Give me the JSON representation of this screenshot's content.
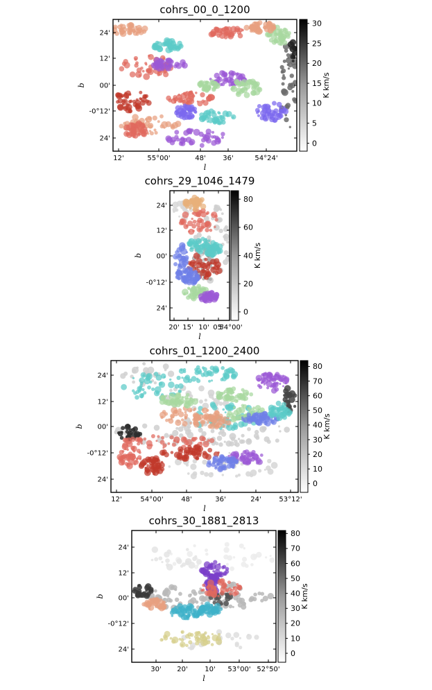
{
  "chart_data": [
    {
      "type": "heatmap",
      "title": "cohrs_00_0_1200",
      "xlabel": "l",
      "ylabel": "b",
      "xticks": [
        "12'",
        "55°00'",
        "48'",
        "36'",
        "54°24'"
      ],
      "yticks": [
        "24'",
        "12'",
        "00'",
        "-0°12'",
        "24'"
      ],
      "colorbar": {
        "label": "K km/s",
        "ticks": [
          "30",
          "25",
          "20",
          "15",
          "10",
          "5",
          "0"
        ],
        "range": [
          -2,
          31
        ]
      },
      "palette": [
        "#e06a5e",
        "#c0392b",
        "#7b68ee",
        "#9b59d6",
        "#5ccac8",
        "#a8d8a0",
        "#e8a080"
      ]
    },
    {
      "type": "heatmap",
      "title": "cohrs_29_1046_1479",
      "xlabel": "l",
      "ylabel": "b",
      "xticks": [
        "20'",
        "15'",
        "10'",
        "05'",
        "54°00'"
      ],
      "yticks": [
        "24'",
        "12'",
        "00'",
        "-0°12'",
        "24'"
      ],
      "colorbar": {
        "label": "K km/s",
        "ticks": [
          "80",
          "60",
          "40",
          "20",
          "0"
        ],
        "range": [
          -6,
          86
        ]
      },
      "palette": [
        "#e06a5e",
        "#c0392b",
        "#6f7fe8",
        "#5ccac8",
        "#a8d8a0",
        "#9b59d6",
        "#e8b07a"
      ]
    },
    {
      "type": "heatmap",
      "title": "cohrs_01_1200_2400",
      "xlabel": "l",
      "ylabel": "b",
      "xticks": [
        "12'",
        "54°00'",
        "48'",
        "36'",
        "24'",
        "53°12'"
      ],
      "yticks": [
        "24'",
        "12'",
        "00'",
        "-0°12'",
        "24'"
      ],
      "colorbar": {
        "label": "K km/s",
        "ticks": [
          "80",
          "70",
          "60",
          "50",
          "40",
          "30",
          "20",
          "10",
          "0"
        ],
        "range": [
          -6,
          84
        ]
      },
      "palette": [
        "#5ccac8",
        "#e06a5e",
        "#c0392b",
        "#9b59d6",
        "#e8a080",
        "#a8d8a0",
        "#6f7fe8"
      ]
    },
    {
      "type": "heatmap",
      "title": "cohrs_30_1881_2813",
      "xlabel": "l",
      "ylabel": "b",
      "xticks": [
        "30'",
        "20'",
        "10'",
        "53°00'",
        "52°50'"
      ],
      "yticks": [
        "24'",
        "12'",
        "00'",
        "-0°12'",
        "24'"
      ],
      "colorbar": {
        "label": "K km/s",
        "ticks": [
          "80",
          "70",
          "60",
          "50",
          "40",
          "30",
          "20",
          "10",
          "0"
        ],
        "range": [
          -6,
          82
        ]
      },
      "palette": [
        "#7a3ec9",
        "#e06a5e",
        "#3fb1c9",
        "#d6cf8a",
        "#e8a080"
      ]
    }
  ]
}
